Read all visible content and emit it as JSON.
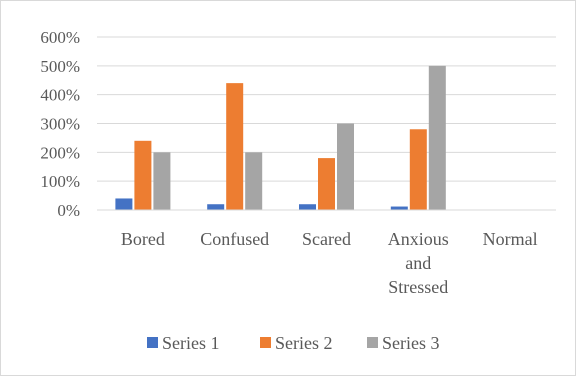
{
  "chart_data": {
    "type": "bar",
    "categories": [
      "Bored",
      "Confused",
      "Scared",
      "Anxious and Stressed",
      "Normal"
    ],
    "category_lines": [
      [
        "Bored"
      ],
      [
        "Confused"
      ],
      [
        "Scared"
      ],
      [
        "Anxious",
        "and",
        "Stressed"
      ],
      [
        "Normal"
      ]
    ],
    "series": [
      {
        "name": "Series 1",
        "values": [
          40,
          20,
          20,
          12,
          0
        ],
        "color": "#4472c4"
      },
      {
        "name": "Series 2",
        "values": [
          240,
          440,
          180,
          280,
          0
        ],
        "color": "#ed7d31"
      },
      {
        "name": "Series 3",
        "values": [
          200,
          200,
          300,
          500,
          0
        ],
        "color": "#a5a5a5"
      }
    ],
    "y_unit": "%",
    "ylim": [
      0,
      600
    ],
    "yticks": [
      "0%",
      "100%",
      "200%",
      "300%",
      "400%",
      "500%",
      "600%"
    ],
    "grid": true,
    "legend_position": "bottom",
    "title": "",
    "xlabel": "",
    "ylabel": ""
  }
}
